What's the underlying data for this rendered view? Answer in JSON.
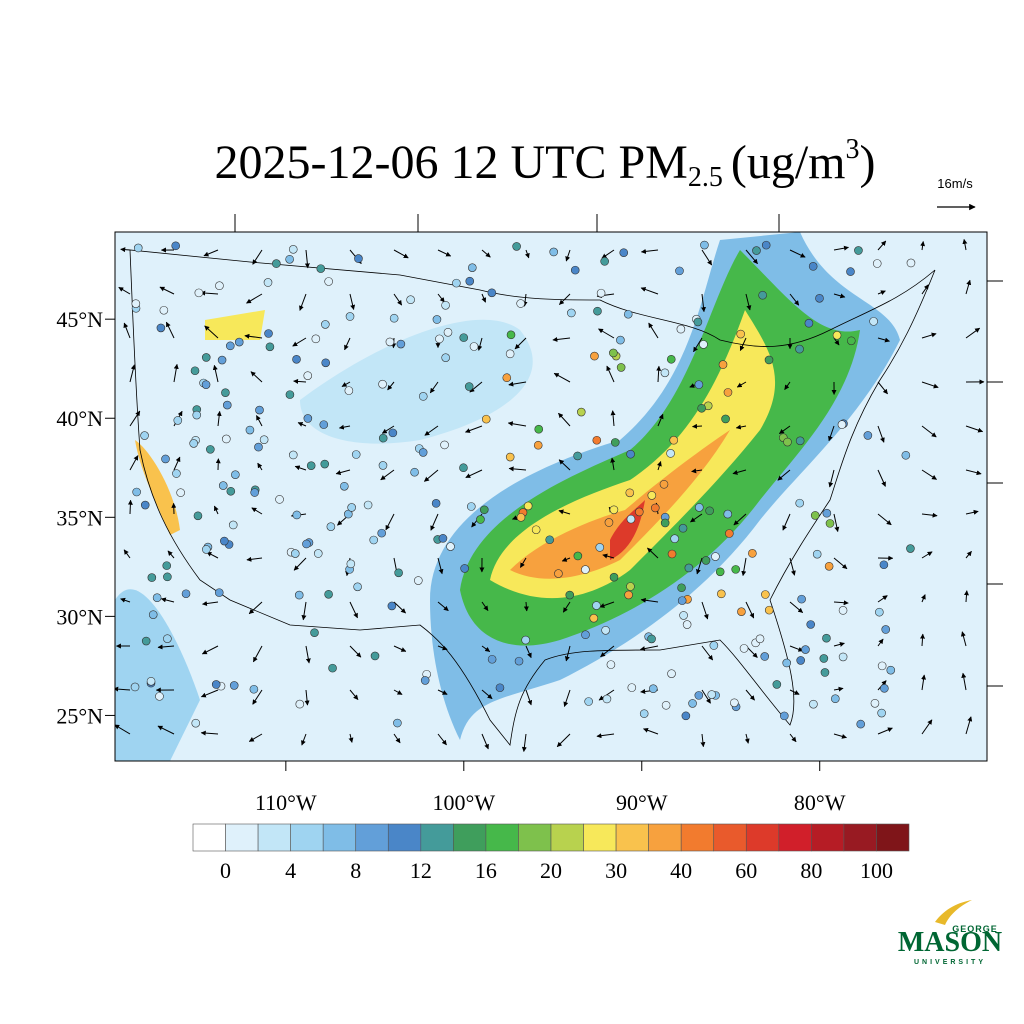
{
  "chart_data": {
    "type": "map",
    "title": {
      "main": "2025-12-06 12 UTC PM",
      "sub": "2.5",
      "unit": "(ug/m",
      "sup": "3",
      "close": ")"
    },
    "reference_vector": "16m/s",
    "xlim": [
      -119.6,
      -70.6
    ],
    "ylim": [
      22.7,
      49.4
    ],
    "xticks": [
      {
        "value": -110,
        "label": "110°W"
      },
      {
        "value": -100,
        "label": "100°W"
      },
      {
        "value": -90,
        "label": "90°W"
      },
      {
        "value": -80,
        "label": "80°W"
      }
    ],
    "yticks": [
      {
        "value": 25,
        "label": "25°N"
      },
      {
        "value": 30,
        "label": "30°N"
      },
      {
        "value": 35,
        "label": "35°N"
      },
      {
        "value": 40,
        "label": "40°N"
      },
      {
        "value": 45,
        "label": "45°N"
      }
    ],
    "colorbar": {
      "colors": [
        "#ffffff",
        "#dff1fb",
        "#c2e6f7",
        "#9fd4f1",
        "#7fbde7",
        "#629fd9",
        "#4a86c8",
        "#449b9a",
        "#3f9e5c",
        "#46b84a",
        "#7ec14c",
        "#b8d24e",
        "#f7e85a",
        "#f9c24d",
        "#f7a13e",
        "#f27b2e",
        "#e95a2c",
        "#dd3a2a",
        "#d11f2a",
        "#b61c25",
        "#981a22",
        "#7f1519"
      ],
      "ticks": [
        0,
        4,
        8,
        12,
        16,
        20,
        30,
        40,
        60,
        80,
        100
      ]
    }
  },
  "logo": {
    "top": "GEORGE",
    "name": "MASON",
    "bottom": "UNIVERSITY"
  }
}
